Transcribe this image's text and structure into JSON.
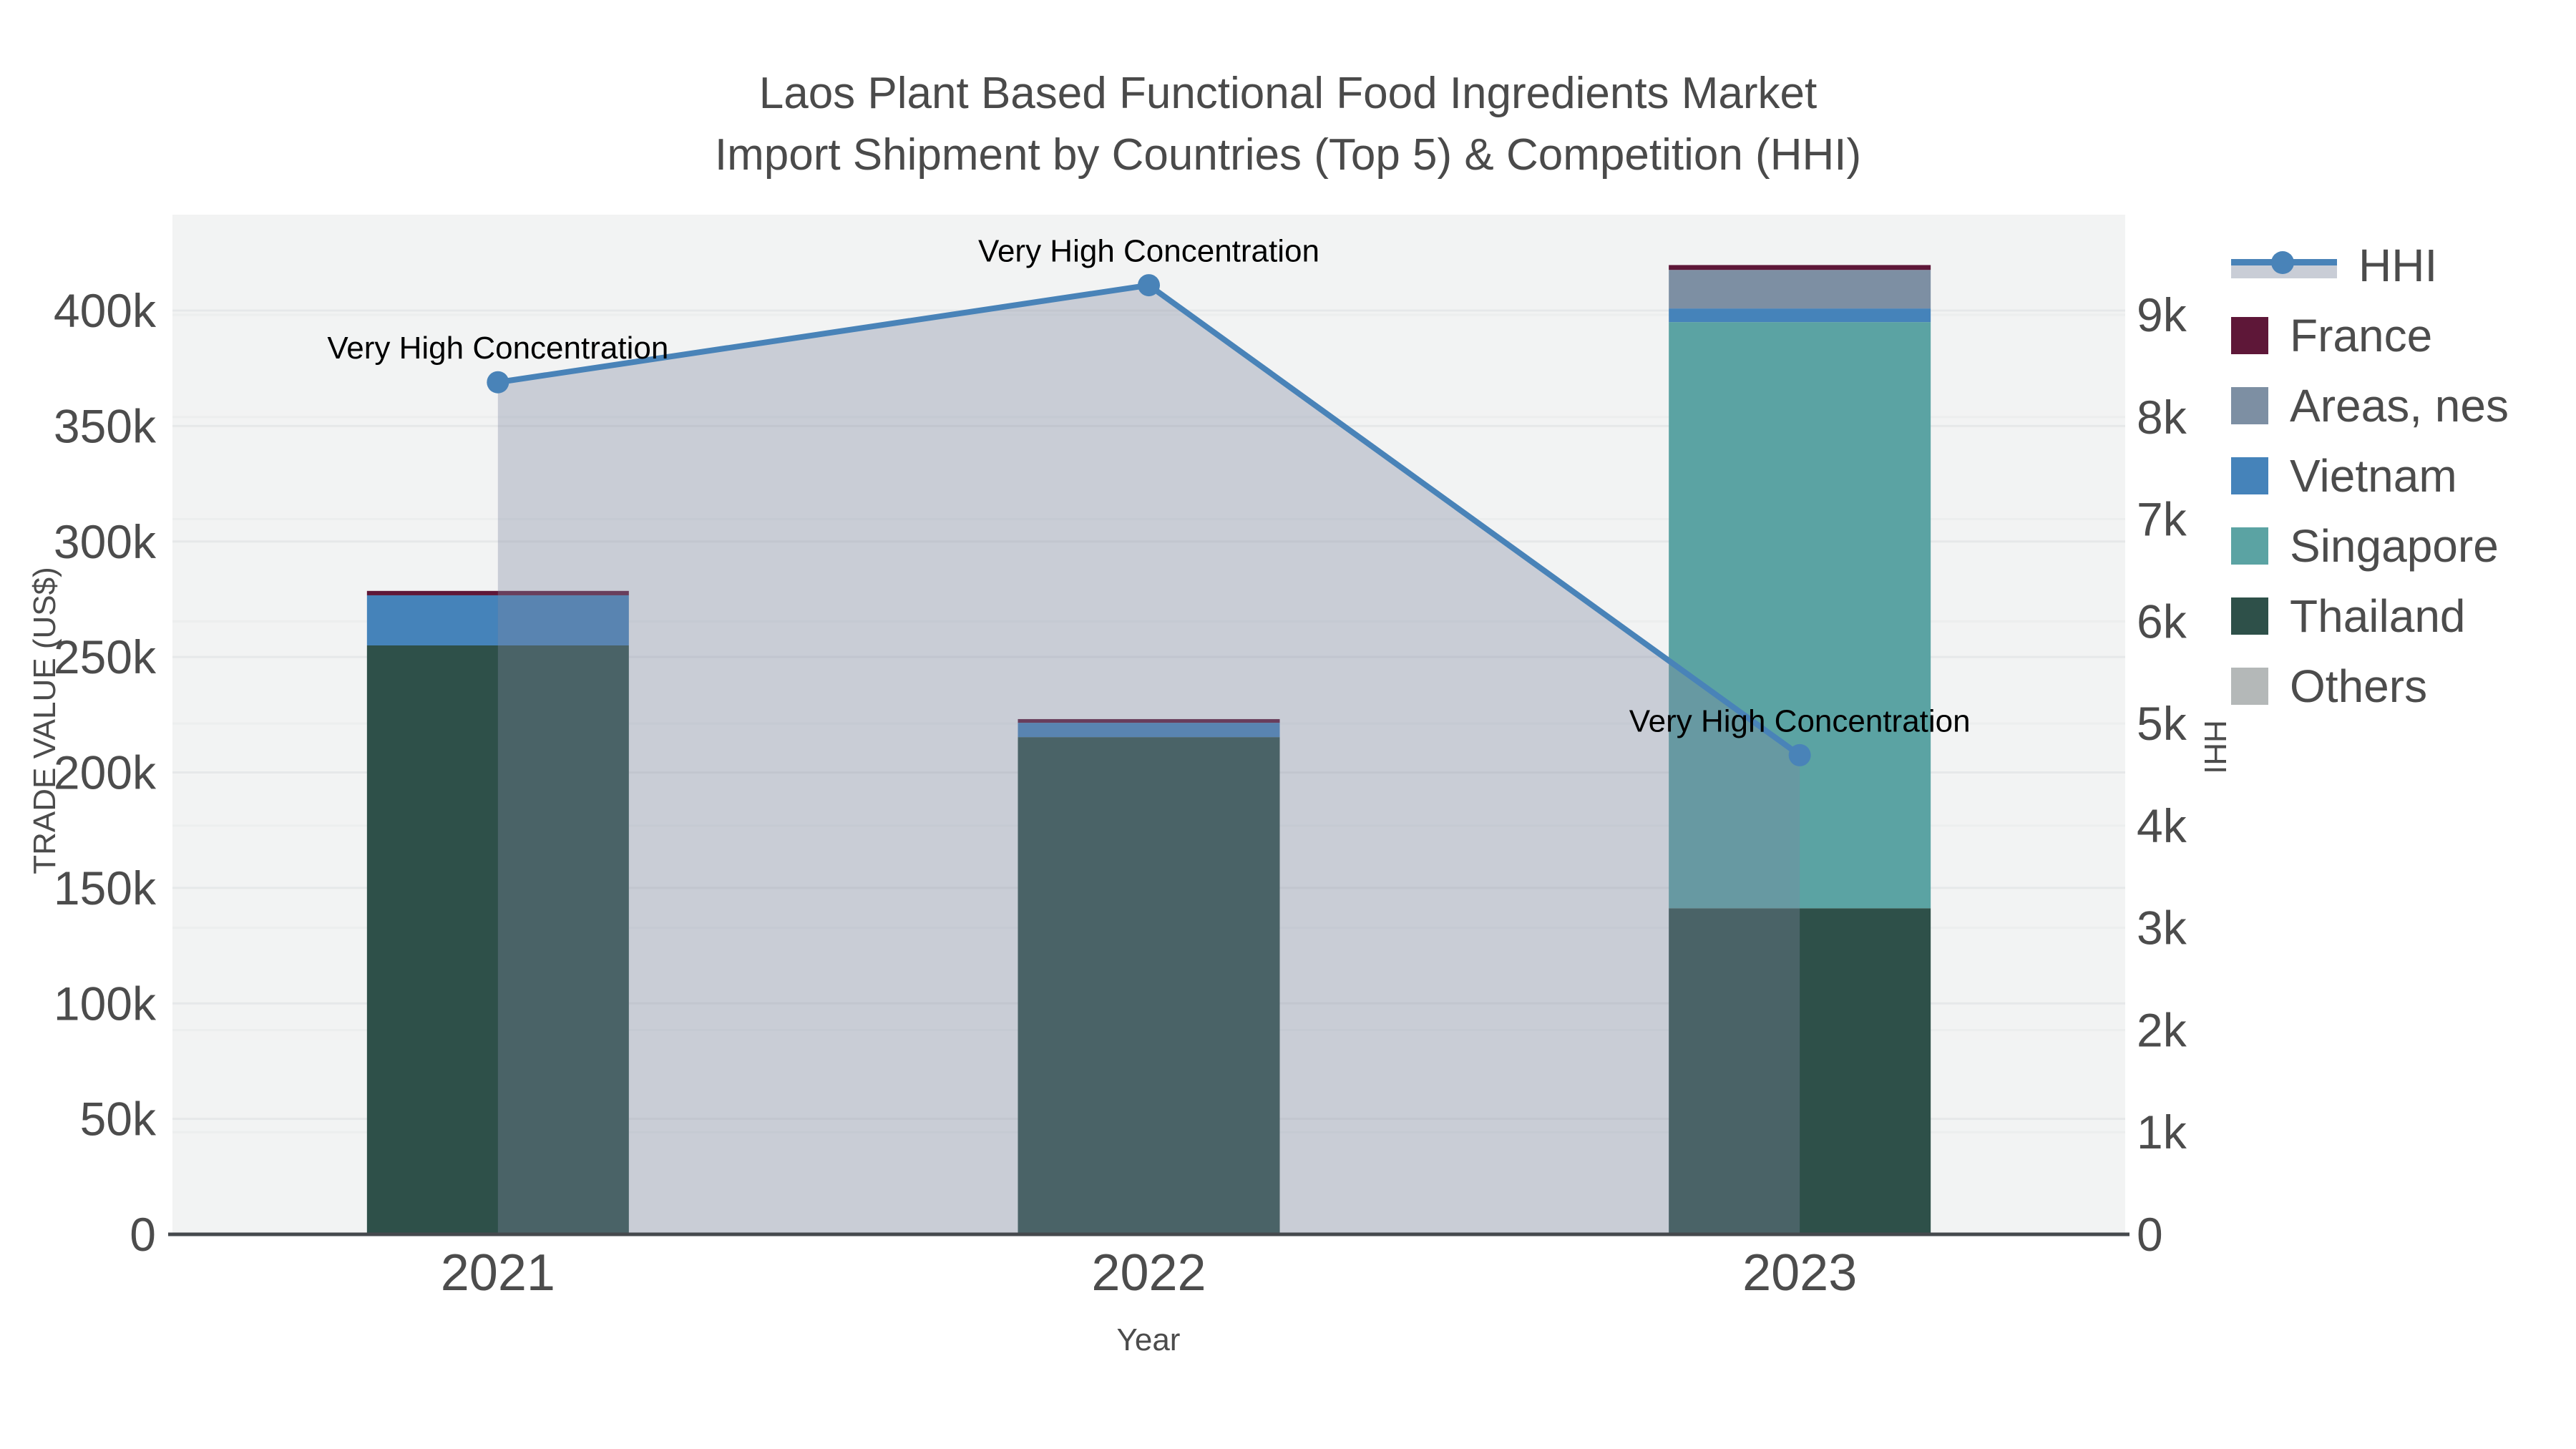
{
  "title": {
    "line1": "Laos Plant Based Functional Food Ingredients Market",
    "line2": "Import Shipment by Countries (Top 5) & Competition (HHI)"
  },
  "axes": {
    "y_left": {
      "title": "TRADE VALUE (US$)",
      "ticks": [
        {
          "label": "0",
          "value": 0
        },
        {
          "label": "50k",
          "value": 50000
        },
        {
          "label": "100k",
          "value": 100000
        },
        {
          "label": "150k",
          "value": 150000
        },
        {
          "label": "200k",
          "value": 200000
        },
        {
          "label": "250k",
          "value": 250000
        },
        {
          "label": "300k",
          "value": 300000
        },
        {
          "label": "350k",
          "value": 350000
        },
        {
          "label": "400k",
          "value": 400000
        }
      ]
    },
    "y_right": {
      "title": "HHI",
      "ticks": [
        {
          "label": "0",
          "value": 0
        },
        {
          "label": "1k",
          "value": 1000
        },
        {
          "label": "2k",
          "value": 2000
        },
        {
          "label": "3k",
          "value": 3000
        },
        {
          "label": "4k",
          "value": 4000
        },
        {
          "label": "5k",
          "value": 5000
        },
        {
          "label": "6k",
          "value": 6000
        },
        {
          "label": "7k",
          "value": 7000
        },
        {
          "label": "8k",
          "value": 8000
        },
        {
          "label": "9k",
          "value": 9000
        }
      ]
    },
    "x": {
      "title": "Year",
      "ticks": [
        "2021",
        "2022",
        "2023"
      ]
    }
  },
  "legend": {
    "items": [
      {
        "label": "HHI",
        "type": "line",
        "color": "#4983b8"
      },
      {
        "label": "France",
        "type": "square",
        "color": "#5e1738"
      },
      {
        "label": "Areas, nes",
        "type": "square",
        "color": "#7d8fa3"
      },
      {
        "label": "Vietnam",
        "type": "square",
        "color": "#4583ba"
      },
      {
        "label": "Singapore",
        "type": "square",
        "color": "#5ba3a3"
      },
      {
        "label": "Thailand",
        "type": "square",
        "color": "#2e5049"
      },
      {
        "label": "Others",
        "type": "square",
        "color": "#b4b8b8"
      }
    ]
  },
  "chart_data": {
    "type": "bar",
    "subtype": "stacked bars with overlaid line + area (dual axis)",
    "categories": [
      "2021",
      "2022",
      "2023"
    ],
    "series": [
      {
        "name": "Others",
        "axis": "left",
        "color": "#b4b8b8",
        "values": [
          0,
          0,
          0
        ]
      },
      {
        "name": "Thailand",
        "axis": "left",
        "color": "#2e5049",
        "values": [
          255000,
          215300,
          141200
        ]
      },
      {
        "name": "Singapore",
        "axis": "left",
        "color": "#5ba3a3",
        "values": [
          0,
          0,
          253800
        ]
      },
      {
        "name": "Vietnam",
        "axis": "left",
        "color": "#4583ba",
        "values": [
          21700,
          6200,
          5900
        ]
      },
      {
        "name": "Areas, nes",
        "axis": "left",
        "color": "#7d8fa3",
        "values": [
          0,
          0,
          16700
        ]
      },
      {
        "name": "France",
        "axis": "left",
        "color": "#5e1738",
        "values": [
          1900,
          1600,
          2100
        ]
      }
    ],
    "line_series": {
      "name": "HHI",
      "axis": "right",
      "color": "#4983b8",
      "fill_color": "rgba(125,134,160,0.35)",
      "values": [
        8340,
        9290,
        4690
      ]
    },
    "annotations": [
      {
        "text": "Very High Concentration",
        "x": "2021"
      },
      {
        "text": "Very High Concentration",
        "x": "2022"
      },
      {
        "text": "Very High Concentration",
        "x": "2023"
      }
    ],
    "title": "Laos Plant Based Functional Food Ingredients Market Import Shipment by Countries (Top 5) & Competition (HHI)",
    "xlabel": "Year",
    "ylabel": "TRADE VALUE (US$)",
    "ylabel_right": "HHI",
    "ylim_left": [
      0,
      441000
    ],
    "ylim_right": [
      0,
      9980
    ],
    "grid": true,
    "legend_position": "right",
    "plot_bg": "#f2f3f3",
    "grid_color": "#e6e8e9",
    "zero_line_color": "#45494d",
    "tick_color": "#4c4c4c"
  }
}
